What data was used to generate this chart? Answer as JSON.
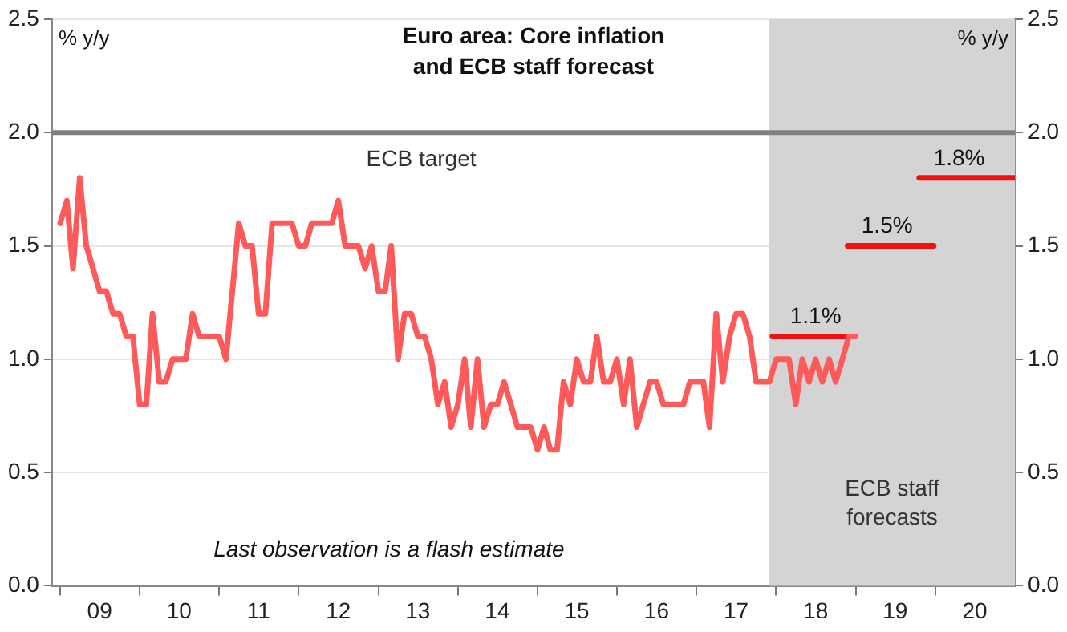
{
  "chart_data": {
    "type": "line",
    "title": "Euro area: Core inflation\nand ECB staff forecast",
    "ylabel": "% y/y",
    "y2label": "% y/y",
    "xlim": [
      "2008-11-25",
      "2021-01-01"
    ],
    "xticks": [
      {
        "value": "2009-01-01",
        "label": null
      },
      {
        "value": "2009-07-01",
        "label": "09"
      },
      {
        "value": "2010-01-01",
        "label": null
      },
      {
        "value": "2010-07-01",
        "label": "10"
      },
      {
        "value": "2011-01-01",
        "label": null
      },
      {
        "value": "2011-07-01",
        "label": "11"
      },
      {
        "value": "2012-01-01",
        "label": null
      },
      {
        "value": "2012-07-01",
        "label": "12"
      },
      {
        "value": "2013-01-01",
        "label": null
      },
      {
        "value": "2013-07-01",
        "label": "13"
      },
      {
        "value": "2014-01-01",
        "label": null
      },
      {
        "value": "2014-07-01",
        "label": "14"
      },
      {
        "value": "2015-01-01",
        "label": null
      },
      {
        "value": "2015-07-01",
        "label": "15"
      },
      {
        "value": "2016-01-01",
        "label": null
      },
      {
        "value": "2016-07-01",
        "label": "16"
      },
      {
        "value": "2017-01-01",
        "label": null
      },
      {
        "value": "2017-07-01",
        "label": "17"
      },
      {
        "value": "2018-01-01",
        "label": null
      },
      {
        "value": "2018-07-01",
        "label": "18"
      },
      {
        "value": "2019-01-01",
        "label": null
      },
      {
        "value": "2019-07-01",
        "label": "19"
      },
      {
        "value": "2020-01-01",
        "label": null
      },
      {
        "value": "2020-07-01",
        "label": "20"
      }
    ],
    "ylim": [
      0,
      2.5
    ],
    "yticks": [
      {
        "value": 0,
        "label": "0.0"
      },
      0.5,
      {
        "value": 1,
        "label": "1.0"
      },
      1.5,
      {
        "value": 2,
        "label": "2.0"
      },
      2.5
    ],
    "y2lim": [
      0,
      2.5
    ],
    "y2ticks": [
      {
        "value": 0,
        "label": "0.0"
      },
      0.5,
      {
        "value": 1,
        "label": "1.0"
      },
      1.5,
      {
        "value": 2,
        "label": "2.0"
      },
      2.5
    ],
    "grid": "y",
    "legend": false,
    "marker": "none",
    "line_style": "solid",
    "series": [
      {
        "color": "#ff5a5a",
        "x": [
          "2009-01",
          "2009-02",
          "2009-03",
          "2009-04",
          "2009-05",
          "2009-06",
          "2009-07",
          "2009-08",
          "2009-09",
          "2009-10",
          "2009-11",
          "2009-12",
          "2010-01",
          "2010-02",
          "2010-03",
          "2010-04",
          "2010-05",
          "2010-06",
          "2010-08",
          "2010-09",
          "2010-10",
          "2011-01",
          "2011-02",
          "2011-04",
          "2011-05",
          "2011-06",
          "2011-07",
          "2011-08",
          "2011-09",
          "2011-12",
          "2012-01",
          "2012-02",
          "2012-03",
          "2012-06",
          "2012-07",
          "2012-08",
          "2012-10",
          "2012-11",
          "2012-12",
          "2013-01",
          "2013-02",
          "2013-03",
          "2013-04",
          "2013-05",
          "2013-06",
          "2013-07",
          "2013-08",
          "2013-09",
          "2013-10",
          "2013-11",
          "2013-12",
          "2014-01",
          "2014-02",
          "2014-03",
          "2014-04",
          "2014-05",
          "2014-06",
          "2014-07",
          "2014-08",
          "2014-09",
          "2014-10",
          "2014-12",
          "2015-01",
          "2015-02",
          "2015-03",
          "2015-04",
          "2015-05",
          "2015-06",
          "2015-07",
          "2015-08",
          "2015-09",
          "2015-10",
          "2015-11",
          "2015-12",
          "2016-01",
          "2016-02",
          "2016-03",
          "2016-04",
          "2016-05",
          "2016-06",
          "2016-07",
          "2016-08",
          "2016-11",
          "2016-12",
          "2017-02",
          "2017-03",
          "2017-04",
          "2017-05",
          "2017-06",
          "2017-07",
          "2017-08",
          "2017-09",
          "2017-10",
          "2017-12",
          "2018-01",
          "2018-02",
          "2018-03",
          "2018-04",
          "2018-05",
          "2018-06",
          "2018-07",
          "2018-08",
          "2018-09",
          "2018-10",
          "2018-11",
          "2018-12",
          "2019-01"
        ],
        "values": [
          1.6,
          1.7,
          1.4,
          1.8,
          1.5,
          1.4,
          1.3,
          1.3,
          1.2,
          1.2,
          1.1,
          1.1,
          0.8,
          0.8,
          1.2,
          0.9,
          0.9,
          1.0,
          1.0,
          1.2,
          1.1,
          1.1,
          1.0,
          1.6,
          1.5,
          1.5,
          1.2,
          1.2,
          1.6,
          1.6,
          1.5,
          1.5,
          1.6,
          1.6,
          1.7,
          1.5,
          1.5,
          1.4,
          1.5,
          1.3,
          1.3,
          1.5,
          1.0,
          1.2,
          1.2,
          1.1,
          1.1,
          1.0,
          0.8,
          0.9,
          0.7,
          0.8,
          1.0,
          0.7,
          1.0,
          0.7,
          0.8,
          0.8,
          0.9,
          0.8,
          0.7,
          0.7,
          0.6,
          0.7,
          0.6,
          0.6,
          0.9,
          0.8,
          1.0,
          0.9,
          0.9,
          1.1,
          0.9,
          0.9,
          1.0,
          0.8,
          1.0,
          0.7,
          0.8,
          0.9,
          0.9,
          0.8,
          0.8,
          0.9,
          0.9,
          0.7,
          1.2,
          0.9,
          1.1,
          1.2,
          1.2,
          1.1,
          0.9,
          0.9,
          1.0,
          1.0,
          1.0,
          0.8,
          1.0,
          0.9,
          1.0,
          0.9,
          1.0,
          0.9,
          1.0,
          1.1,
          1.1
        ]
      },
      {
        "color": "#ee1111",
        "x": [
          "2017-12-15",
          "2018-12-15"
        ],
        "values": [
          1.1,
          1.1
        ]
      },
      {
        "color": "#ee1111",
        "x": [
          "2018-11-25",
          "2019-12-25"
        ],
        "values": [
          1.5,
          1.5
        ]
      },
      {
        "color": "#ee1111",
        "x": [
          "2019-10-20",
          "2021-01-01"
        ],
        "values": [
          1.8,
          1.8
        ]
      }
    ],
    "ref_lines": [
      {
        "axis": "y",
        "value": 2.0,
        "label": "ECB target",
        "color": "#808080"
      }
    ],
    "bands": [
      {
        "axis": "x",
        "from": "2017-12-01",
        "to": "2021-01-01",
        "label": "ECB staff\nforecasts",
        "color": "#d4d4d4"
      }
    ],
    "annotations": [
      {
        "text": "1.1%",
        "x": "2018-07-01",
        "y": 1.1
      },
      {
        "text": "1.5%",
        "x": "2019-05-25",
        "y": 1.5
      },
      {
        "text": "1.8%",
        "x": "2020-04-20",
        "y": 1.8
      },
      "Last observation is a flash estimate"
    ]
  }
}
